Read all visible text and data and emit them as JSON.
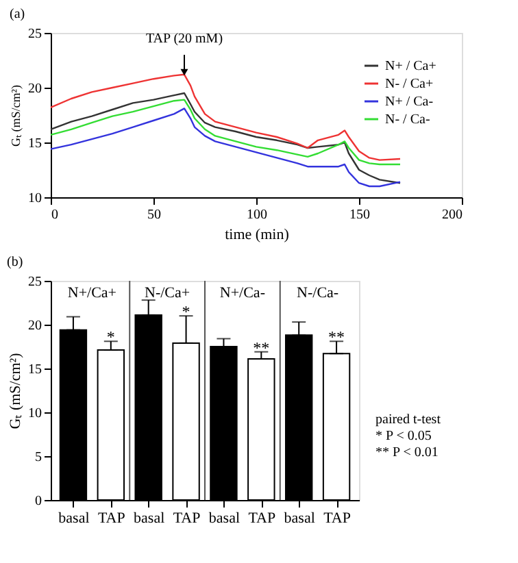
{
  "chart_data": [
    {
      "type": "line",
      "title": "(a)",
      "xlabel": "time (min)",
      "ylabel": "Gₜ (mS/cm²)",
      "x": [
        0,
        10,
        20,
        30,
        40,
        50,
        60,
        65,
        68,
        70,
        75,
        80,
        90,
        100,
        110,
        120,
        125,
        130,
        140,
        143,
        145,
        150,
        155,
        160,
        170
      ],
      "series": [
        {
          "name": "N+ / Ca+",
          "color": "#333333",
          "values": [
            16.2,
            16.9,
            17.4,
            18.0,
            18.6,
            18.9,
            19.3,
            19.5,
            18.5,
            17.8,
            16.8,
            16.4,
            16.0,
            15.5,
            15.2,
            14.8,
            14.5,
            14.6,
            14.8,
            15.0,
            14.0,
            12.5,
            12.0,
            11.6,
            11.3
          ]
        },
        {
          "name": "N- / Ca+",
          "color": "#ee3333",
          "values": [
            18.2,
            19.0,
            19.6,
            20.0,
            20.4,
            20.8,
            21.1,
            21.2,
            20.2,
            19.2,
            17.6,
            16.9,
            16.4,
            15.9,
            15.5,
            14.9,
            14.5,
            15.2,
            15.7,
            16.1,
            15.5,
            14.2,
            13.6,
            13.4,
            13.5
          ]
        },
        {
          "name": "N+ / Ca-",
          "color": "#3333dd",
          "values": [
            14.4,
            14.8,
            15.3,
            15.8,
            16.4,
            17.0,
            17.6,
            18.1,
            17.2,
            16.4,
            15.6,
            15.1,
            14.6,
            14.1,
            13.6,
            13.1,
            12.8,
            12.8,
            12.8,
            13.0,
            12.3,
            11.3,
            11.0,
            11.0,
            11.4
          ]
        },
        {
          "name": "N- / Ca-",
          "color": "#33dd33",
          "values": [
            15.7,
            16.2,
            16.8,
            17.4,
            17.8,
            18.3,
            18.8,
            18.9,
            18.0,
            17.2,
            16.2,
            15.6,
            15.1,
            14.6,
            14.3,
            13.9,
            13.7,
            14.0,
            14.8,
            15.1,
            14.5,
            13.4,
            13.1,
            13.0,
            13.0
          ]
        }
      ],
      "xlim": [
        0,
        200
      ],
      "xticks": [
        0,
        50,
        100,
        150,
        200
      ],
      "ylim": [
        10,
        25
      ],
      "yticks": [
        10,
        15,
        20,
        25
      ],
      "legend": "top right",
      "grid": false,
      "annotations": [
        {
          "text": "TAP (20 mM)",
          "x": 65,
          "y": 21.4
        }
      ]
    },
    {
      "type": "bar",
      "title": "(b)",
      "ylabel": "Gₜ (mS/cm²)",
      "categories": [
        "basal",
        "TAP",
        "basal",
        "TAP",
        "basal",
        "TAP",
        "basal",
        "TAP"
      ],
      "values": [
        19.4,
        17.1,
        21.1,
        17.9,
        17.5,
        16.1,
        18.8,
        16.7
      ],
      "colors": [
        "#000000",
        "#ffffff",
        "#000000",
        "#ffffff",
        "#000000",
        "#ffffff",
        "#000000",
        "#ffffff"
      ],
      "errors": [
        [
          19.4,
          20.9
        ],
        [
          17.1,
          18.1
        ],
        [
          21.1,
          22.8
        ],
        [
          17.9,
          21.0
        ],
        [
          17.5,
          18.4
        ],
        [
          16.1,
          16.9
        ],
        [
          18.8,
          20.3
        ],
        [
          16.7,
          18.1
        ]
      ],
      "value_labels": [
        null,
        "*",
        null,
        "*",
        null,
        "**",
        null,
        "**"
      ],
      "ylim": [
        0,
        25
      ],
      "yticks": [
        0,
        5,
        10,
        15,
        20,
        25
      ],
      "grid": false,
      "annotations": [
        "N+/Ca+",
        "N-/Ca+",
        "N+/Ca-",
        "N-/Ca-",
        "paired t-test\n* P < 0.05\n** P < 0.01"
      ]
    }
  ]
}
